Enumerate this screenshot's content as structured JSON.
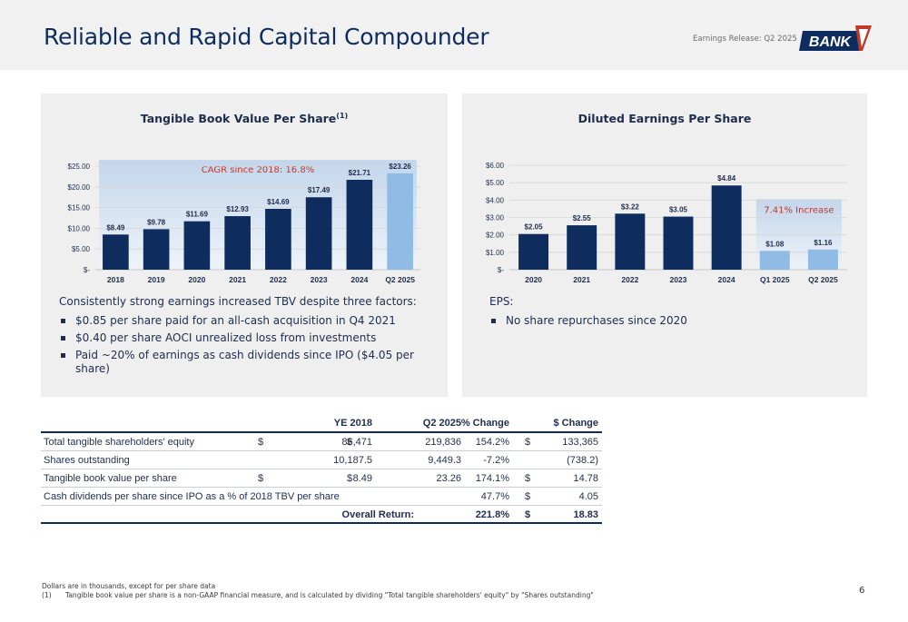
{
  "header": {
    "title": "Reliable and Rapid Capital Compounder",
    "release": "Earnings Release: Q2 2025",
    "logo_text": "BANK"
  },
  "colors": {
    "navy": "#0e2d5e",
    "light_blue": "#8fbbe4",
    "accent_red": "#c0392b",
    "panel_bg": "#efefef"
  },
  "tbv_panel": {
    "title": "Tangible Book Value Per Share",
    "title_sup": "(1)",
    "cagr_label": "CAGR since 2018: 16.8%",
    "intro": "Consistently strong earnings increased TBV despite three factors:",
    "bullets": [
      "$0.85 per share paid for an all-cash acquisition in Q4 2021",
      "$0.40 per share AOCI unrealized loss from investments",
      "Paid ~20% of earnings as cash dividends since IPO ($4.05 per share)"
    ]
  },
  "eps_panel": {
    "title": "Diluted Earnings Per Share",
    "increase_label": "7.41% Increase",
    "intro": "EPS:",
    "bullets": [
      "No share repurchases since 2020"
    ]
  },
  "chart_data": [
    {
      "type": "bar",
      "title": "Tangible Book Value Per Share(1)",
      "categories": [
        "2018",
        "2019",
        "2020",
        "2021",
        "2022",
        "2023",
        "2024",
        "Q2 2025"
      ],
      "values": [
        8.49,
        9.78,
        11.69,
        12.93,
        14.69,
        17.49,
        21.71,
        23.26
      ],
      "value_labels": [
        "$8.49",
        "$9.78",
        "$11.69",
        "$12.93",
        "$14.69",
        "$17.49",
        "$21.71",
        "$23.26"
      ],
      "highlight_index": 7,
      "ylim": [
        0,
        25
      ],
      "yticks": [
        0,
        5,
        10,
        15,
        20,
        25
      ],
      "ytick_labels": [
        "$-",
        "$5.00",
        "$10.00",
        "$15.00",
        "$20.00",
        "$25.00"
      ],
      "annotation": "CAGR since 2018: 16.8%",
      "grid": true
    },
    {
      "type": "bar",
      "title": "Diluted Earnings Per Share",
      "categories": [
        "2020",
        "2021",
        "2022",
        "2023",
        "2024",
        "Q1 2025",
        "Q2 2025"
      ],
      "values": [
        2.05,
        2.55,
        3.22,
        3.05,
        4.84,
        1.08,
        1.16
      ],
      "value_labels": [
        "$2.05",
        "$2.55",
        "$3.22",
        "$3.05",
        "$4.84",
        "$1.08",
        "$1.16"
      ],
      "highlight_from_index": 5,
      "ylim": [
        0,
        6
      ],
      "yticks": [
        0,
        1,
        2,
        3,
        4,
        5,
        6
      ],
      "ytick_labels": [
        "$-",
        "$1.00",
        "$2.00",
        "$3.00",
        "$4.00",
        "$5.00",
        "$6.00"
      ],
      "annotation": "7.41% Increase",
      "grid": true
    }
  ],
  "table": {
    "headers": [
      "YE 2018",
      "Q2 2025",
      "% Change",
      "$ Change"
    ],
    "rows": [
      {
        "label": "Total tangible shareholders' equity",
        "ye_sym": "$",
        "ye": "86,471",
        "q2_sym": "$",
        "q2": "219,836",
        "pct": "154.2%",
        "chg_sym": "$",
        "chg": "133,365"
      },
      {
        "label": "Shares outstanding",
        "ye_sym": "",
        "ye": "10,187.5",
        "q2_sym": "",
        "q2": "9,449.3",
        "pct": "-7.2%",
        "chg_sym": "",
        "chg": "(738.2)"
      },
      {
        "label": "Tangible book value per share",
        "ye_sym": "$",
        "ye": "8.49",
        "q2_sym": "$",
        "q2": "23.26",
        "pct": "174.1%",
        "chg_sym": "$",
        "chg": "14.78"
      },
      {
        "label": "Cash dividends per share since IPO as a % of 2018 TBV per share",
        "ye_sym": "",
        "ye": "",
        "q2_sym": "",
        "q2": "",
        "pct": "47.7%",
        "chg_sym": "$",
        "chg": "4.05"
      }
    ],
    "total": {
      "label": "Overall Return:",
      "pct": "221.8%",
      "chg_sym": "$",
      "chg": "18.83"
    }
  },
  "footer": {
    "note1": "Dollars are in thousands, except for per share data",
    "note2_num": "(1)",
    "note2": "Tangible book value per share is a non-GAAP financial measure, and is calculated by dividing \"Total tangible shareholders' equity\" by \"Shares outstanding\"",
    "page": "6"
  }
}
